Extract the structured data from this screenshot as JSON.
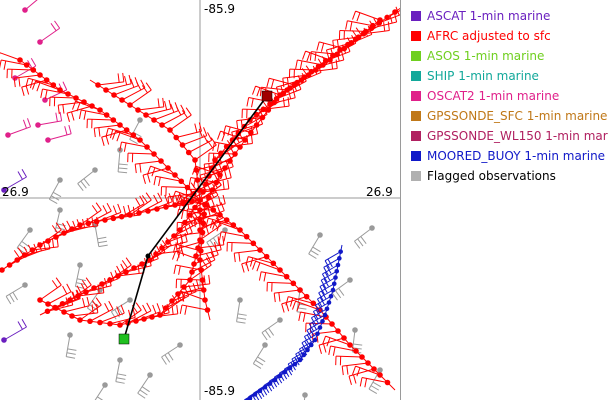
{
  "axes": {
    "top_label": "-85.9",
    "bottom_label": "-85.9",
    "left_label": "26.9",
    "right_label": "26.9"
  },
  "legend": {
    "items": [
      {
        "label": "ASCAT 1-min marine",
        "color": "#6a1fbf"
      },
      {
        "label": "AFRC adjusted to sfc",
        "color": "#ff0000"
      },
      {
        "label": "ASOS 1-min marine",
        "color": "#6fcf1f"
      },
      {
        "label": "SHIP 1-min marine",
        "color": "#12a89a"
      },
      {
        "label": "OSCAT2 1-min marine",
        "color": "#e0208a"
      },
      {
        "label": "GPSSONDE_SFC 1-min marine",
        "color": "#c07818"
      },
      {
        "label": "GPSSONDE_WL150 1-min mar",
        "color": "#b02060"
      },
      {
        "label": "MOORED_BUOY 1-min marine",
        "color": "#1018c8"
      },
      {
        "label": "Flagged observations",
        "color": "#b0b0b0"
      }
    ]
  },
  "markers": {
    "square_dark_red": "#a00000",
    "square_green": "#20c020",
    "track_line": "#000000"
  }
}
